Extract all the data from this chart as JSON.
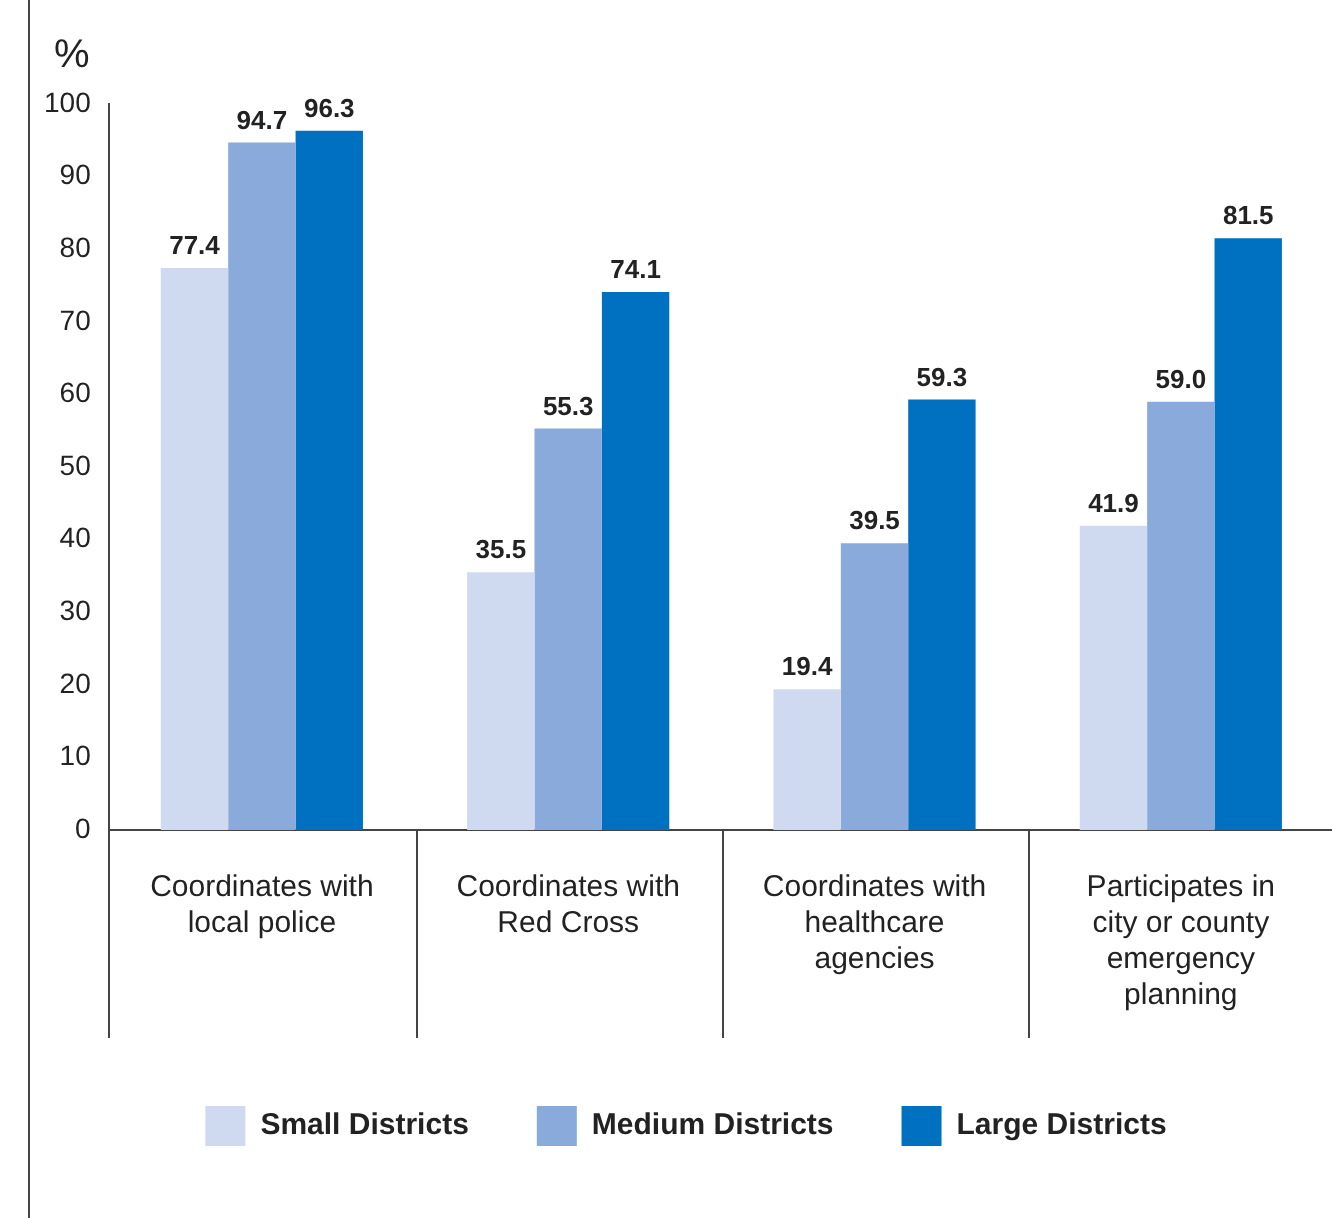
{
  "chart_data": {
    "type": "bar",
    "ylabel": "%",
    "categories": [
      "Coordinates with local police",
      "Coordinates with Red Cross",
      "Coordinates with healthcare agencies",
      "Participates in city or county emergency planning"
    ],
    "series": [
      {
        "name": "Small Districts",
        "color": "#cfdaf0",
        "values": [
          77.4,
          35.5,
          19.4,
          41.9
        ],
        "value_labels": [
          "77.4",
          "35.5",
          "19.4",
          "41.9"
        ]
      },
      {
        "name": "Medium Districts",
        "color": "#89aadb",
        "values": [
          94.7,
          55.3,
          39.5,
          59.0
        ],
        "value_labels": [
          "94.7",
          "55.3",
          "39.5",
          "59.0"
        ]
      },
      {
        "name": "Large Districts",
        "color": "#0070c0",
        "values": [
          96.3,
          74.1,
          59.3,
          81.5
        ],
        "value_labels": [
          "96.3",
          "74.1",
          "59.3",
          "81.5"
        ]
      }
    ],
    "ylim": [
      0,
      100
    ],
    "yticks": [
      0,
      10,
      20,
      30,
      40,
      50,
      60,
      70,
      80,
      90,
      100
    ],
    "legend": "bottom"
  }
}
